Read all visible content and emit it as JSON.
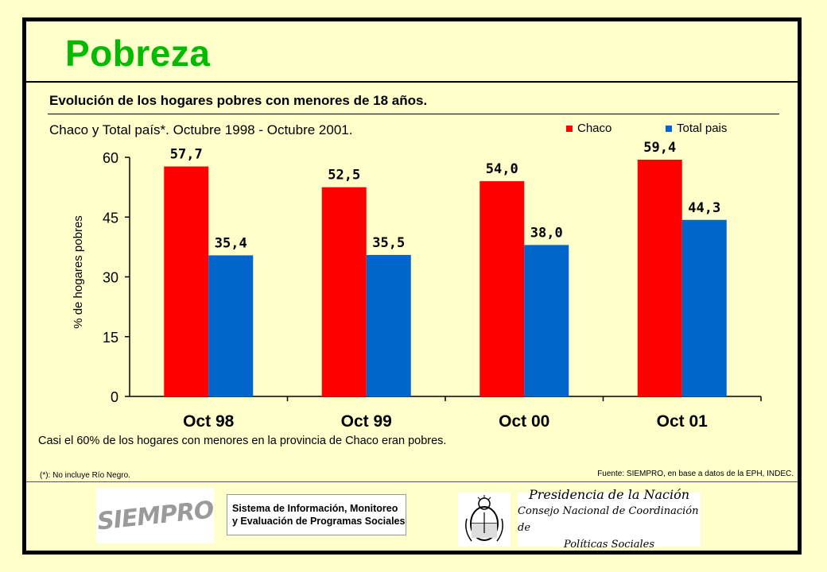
{
  "header": {
    "title": "Pobreza"
  },
  "subtitle1": "Evolución de los hogares pobres con menores de 18 años.",
  "subtitle2": "Chaco  y Total país*. Octubre 1998 - Octubre 2001.",
  "chart_data": {
    "type": "bar",
    "categories": [
      "Oct 98",
      "Oct 99",
      "Oct 00",
      "Oct 01"
    ],
    "series": [
      {
        "name": "Chaco",
        "values": [
          57.7,
          52.5,
          54.0,
          59.4
        ],
        "labels": [
          "57,7",
          "52,5",
          "54,0",
          "59,4"
        ],
        "color": "#ff0000"
      },
      {
        "name": "Total pais",
        "values": [
          35.4,
          35.5,
          38.0,
          44.3
        ],
        "labels": [
          "35,4",
          "35,5",
          "38,0",
          "44,3"
        ],
        "color": "#0066cc"
      }
    ],
    "ylabel": "% de hogares pobres",
    "ylim": [
      0,
      60
    ],
    "yticks": [
      0,
      15,
      30,
      45,
      60
    ],
    "grid": false,
    "legend": "top-right"
  },
  "note": "Casi el 60% de los hogares con menores en la provincia de Chaco eran pobres.",
  "footnote": "(*): No incluye Río Negro.",
  "source": "Fuente: SIEMPRO, en base a datos de la EPH, INDEC.",
  "logos": {
    "siempro": "SIEMPRO",
    "program_line1": "Sistema de Información, Monitoreo",
    "program_line2": "y Evaluación de Programas Sociales",
    "presidency_line1": "Presidencia de la Nación",
    "presidency_line2": "Consejo Nacional de Coordinación de",
    "presidency_line3": "Políticas Sociales",
    "seal": "coat-of-arms"
  }
}
